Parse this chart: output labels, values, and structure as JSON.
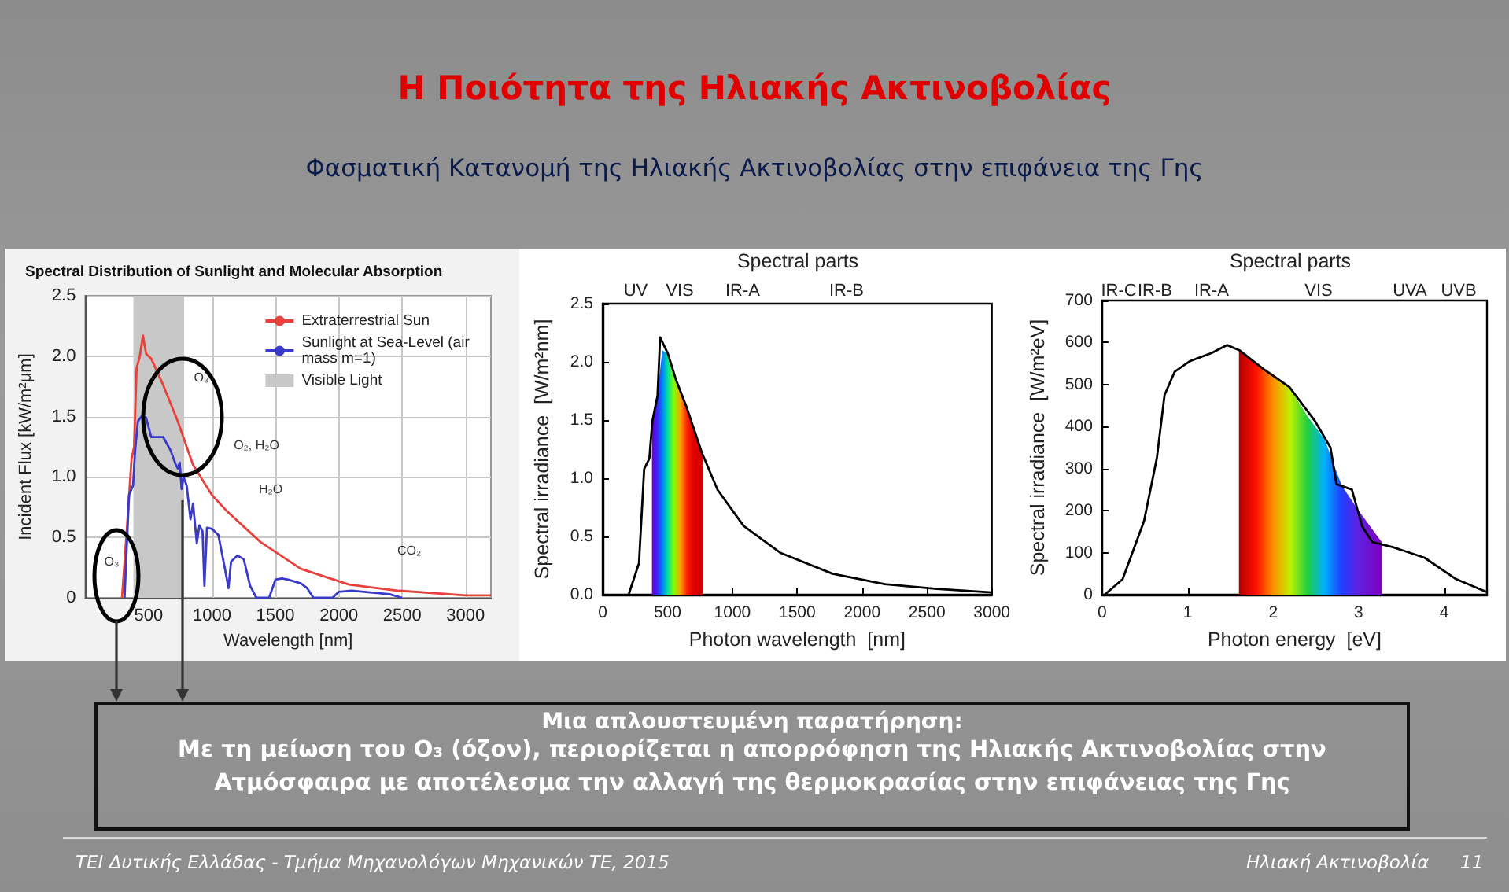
{
  "chart_data": [
    {
      "type": "line",
      "title": "Spectral Distribution of Sunlight and Molecular Absorption",
      "xlabel": "Wavelength [nm]",
      "ylabel": "Incident Flux [kW/m²μm]",
      "xlim": [
        0,
        3200
      ],
      "xticks": [
        500,
        1000,
        1500,
        2000,
        2500,
        3000
      ],
      "ylim": [
        0,
        2.5
      ],
      "yticks": [
        0,
        0.5,
        {
          "value": 1,
          "label": "1.0"
        },
        1.5,
        {
          "value": 2,
          "label": "2.0"
        },
        2.5
      ],
      "grid": true,
      "legend": "top right",
      "series": [
        {
          "name": "Extraterrestrial Sun",
          "color": "#e8403a",
          "x": [
            290,
            330,
            365,
            385,
            405,
            430,
            455,
            480,
            520,
            615,
            730,
            850,
            1000,
            1115,
            1385,
            1700,
            2080,
            2460,
            3000,
            3200
          ],
          "values": [
            0,
            0.6,
            1.15,
            1.25,
            1.9,
            2.0,
            2.17,
            2.02,
            1.98,
            1.76,
            1.46,
            1.1,
            0.85,
            0.72,
            0.46,
            0.24,
            0.11,
            0.06,
            0.02,
            0.02
          ]
        },
        {
          "name": "Sunlight at Sea-Level (air mass m=1)",
          "color": "#3a3ac8",
          "x": [
            310,
            345,
            377,
            392,
            415,
            442,
            480,
            520,
            615,
            673,
            711,
            730,
            745,
            760,
            775,
            800,
            830,
            850,
            880,
            900,
            925,
            940,
            960,
            1000,
            1050,
            1100,
            1130,
            1150,
            1200,
            1250,
            1300,
            1350,
            1400,
            1450,
            1500,
            1550,
            1600,
            1700,
            1750,
            1800,
            1850,
            1950,
            2000,
            2100,
            2200,
            2300,
            2400,
            2500
          ],
          "values": [
            0,
            0.85,
            0.93,
            1.2,
            1.46,
            1.5,
            1.49,
            1.33,
            1.33,
            1.22,
            1.11,
            1.07,
            1.12,
            0.9,
            1.0,
            0.93,
            0.65,
            0.78,
            0.45,
            0.6,
            0.55,
            0.1,
            0.58,
            0.57,
            0.52,
            0.25,
            0.08,
            0.3,
            0.35,
            0.32,
            0.1,
            0,
            0,
            0,
            0.15,
            0.16,
            0.15,
            0.12,
            0.08,
            0,
            0,
            0,
            0.05,
            0.06,
            0.05,
            0.04,
            0.03,
            0
          ]
        },
        {
          "type": "area",
          "name": "Visible Light",
          "color": "#c8c8c8",
          "x": [
            380,
            780
          ],
          "values": [
            2.5,
            2.5
          ]
        }
      ],
      "annotations": [
        "O₃",
        "O₃",
        "O₂, H₂O",
        "H₂O",
        "CO₂"
      ]
    },
    {
      "type": "line",
      "xlabel": "Photon wavelength  [nm]",
      "ylabel": "Spectral irradiance  [W/m²nm]",
      "annotations": [
        "Spectral parts",
        "UV",
        "VIS",
        "IR-A",
        "IR-B"
      ],
      "xlim": [
        0,
        3000
      ],
      "xticks": [
        0,
        500,
        1000,
        1500,
        2000,
        2500,
        3000
      ],
      "ylim": [
        0,
        2.5
      ],
      "yticks": [
        {
          "value": 0,
          "label": "0.0"
        },
        0.5,
        {
          "value": 1,
          "label": "1.0"
        },
        1.5,
        {
          "value": 2,
          "label": "2.0"
        },
        2.5
      ],
      "series": [
        {
          "type": "area",
          "x": [
            380,
            420,
            460,
            500,
            550,
            600,
            650,
            700,
            770
          ],
          "values": [
            1.45,
            1.7,
            2.1,
            2.07,
            1.9,
            1.75,
            1.6,
            1.45,
            1.22
          ],
          "colors": [
            "#6a00c8",
            "#4020ff",
            "#0080ff",
            "#00e0a0",
            "#80ff00",
            "#ffa000",
            "#ff2000",
            "#e00000",
            "#d00000"
          ]
        },
        {
          "type": "line",
          "color": "#000000",
          "x": [
            200,
            280,
            320,
            360,
            383,
            423,
            443,
            503,
            564,
            644,
            765,
            886,
            1087,
            1369,
            1772,
            2175,
            2577,
            3000
          ],
          "values": [
            0,
            0.27,
            1.08,
            1.17,
            1.49,
            1.71,
            2.21,
            2.07,
            1.85,
            1.62,
            1.22,
            0.9,
            0.59,
            0.36,
            0.18,
            0.09,
            0.05,
            0.02
          ]
        }
      ]
    },
    {
      "type": "line",
      "xlabel": "Photon energy  [eV]",
      "ylabel": "Spectral irradiance  [W/m²eV]",
      "annotations": [
        "Spectral parts",
        "IR-C",
        "IR-B",
        "IR-A",
        "VIS",
        "UVA",
        "UVB"
      ],
      "xlim": [
        0,
        4.5
      ],
      "xticks": [
        0,
        1,
        2,
        3,
        4
      ],
      "ylim": [
        0,
        700
      ],
      "yticks": [
        0,
        100,
        200,
        300,
        400,
        500,
        600,
        700
      ],
      "series": [
        {
          "type": "area",
          "x": [
            1.6,
            1.8,
            2.0,
            2.2,
            2.4,
            2.6,
            2.8,
            3.0,
            3.27
          ],
          "values": [
            581,
            548,
            525,
            490,
            425,
            370,
            260,
            200,
            125
          ],
          "colors": [
            "#b00000",
            "#ff1000",
            "#ff9000",
            "#c0f000",
            "#20d040",
            "#00b0ff",
            "#2040ff",
            "#6020e0",
            "#8000c0"
          ]
        },
        {
          "type": "line",
          "color": "#000000",
          "x": [
            0.03,
            0.24,
            0.49,
            0.64,
            0.73,
            0.85,
            1.03,
            1.28,
            1.46,
            1.61,
            1.88,
            2.19,
            2.49,
            2.67,
            2.74,
            2.92,
            3.04,
            3.16,
            3.4,
            3.77,
            4.13,
            4.5
          ],
          "values": [
            0,
            37,
            175,
            325,
            475,
            531,
            556,
            575,
            594,
            581,
            538,
            494,
            413,
            350,
            263,
            250,
            163,
            125,
            113,
            88,
            38,
            6
          ]
        }
      ]
    },
    {
      "type": "other",
      "title": "Η Ποιότητα της Ηλιακής Ακτινοβολίας",
      "subtitle": "Φασματική Κατανομή της Ηλιακής Ακτινοβολίας στην επιφάνεια της Γης",
      "annotations": [
        "Μια απλουστευμένη παρατήρηση:",
        "Με τη μείωση του O₃ (όζον), περιορίζεται η απορρόφηση της Ηλιακής Ακτινοβολίας στην Ατμόσφαιρα με αποτέλεσμα την αλλαγή της θερμοκρασίας στην επιφάνειας της Γης",
        "TEI Δυτικής Ελλάδας - Τμήμα Μηχανολόγων Μηχανικών ΤΕ, 2015",
        "Ηλιακή Ακτινοβολία",
        "11"
      ]
    }
  ]
}
